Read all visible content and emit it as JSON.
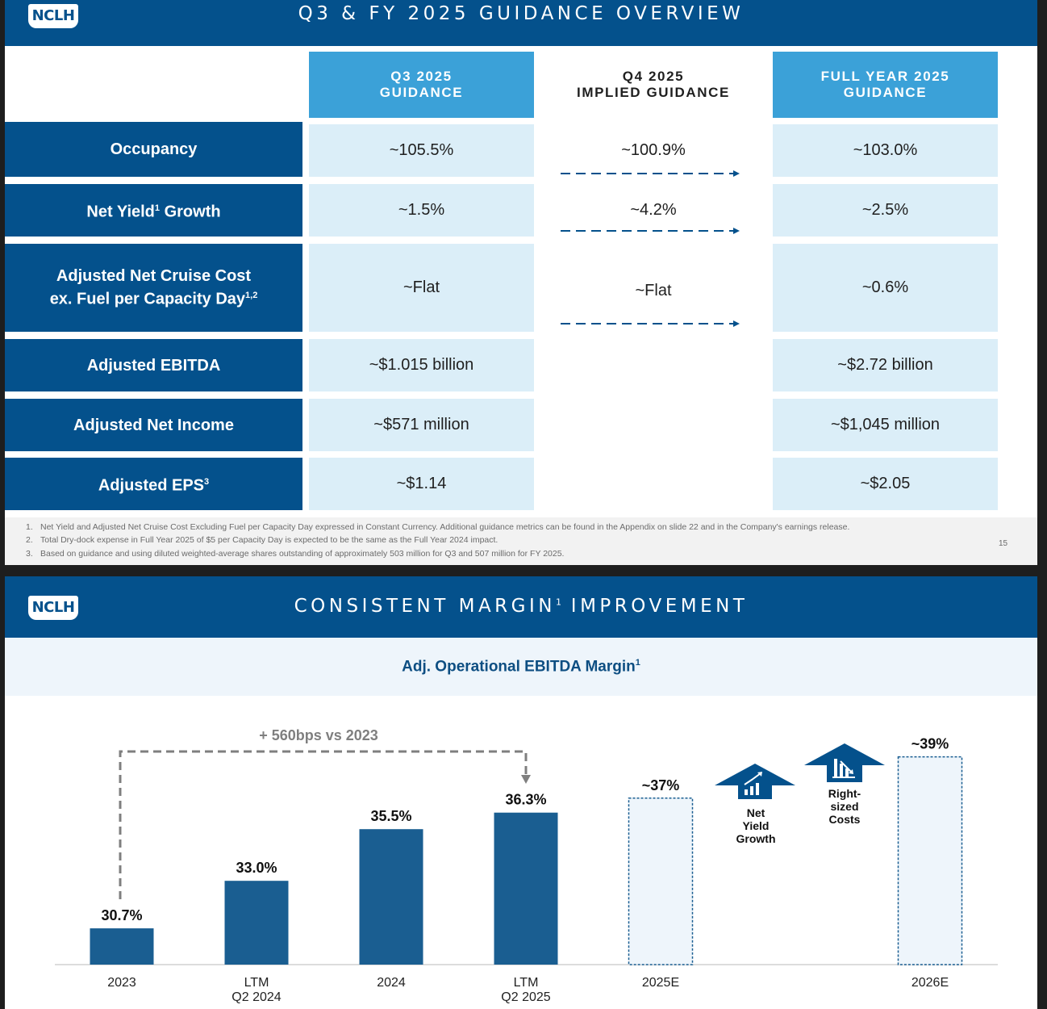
{
  "slide1": {
    "logo": "NCLH",
    "title": "Q3 & FY 2025 GUIDANCE OVERVIEW",
    "columns": {
      "q3": [
        "Q3 2025",
        "GUIDANCE"
      ],
      "q4": [
        "Q4 2025",
        "IMPLIED GUIDANCE"
      ],
      "fy": [
        "FULL YEAR 2025",
        "GUIDANCE"
      ]
    },
    "rows": [
      {
        "label": [
          "Occupancy"
        ],
        "q3": "~105.5%",
        "q4": "~100.9%",
        "fy": "~103.0%"
      },
      {
        "label": [
          "Net Yield",
          "1",
          " Growth"
        ],
        "q3": "~1.5%",
        "q4": "~4.2%",
        "fy": "~2.5%"
      },
      {
        "label": [
          "Adjusted Net Cruise Cost",
          "ex. Fuel per Capacity Day",
          "1,2"
        ],
        "q3": "~Flat",
        "q4": "~Flat",
        "fy": "~0.6%"
      },
      {
        "label": [
          "Adjusted EBITDA"
        ],
        "q3": "~$1.015 billion",
        "q4": "",
        "fy": "~$2.72 billion"
      },
      {
        "label": [
          "Adjusted Net Income"
        ],
        "q3": "~$571 million",
        "q4": "",
        "fy": "~$1,045 million"
      },
      {
        "label": [
          "Adjusted EPS",
          "3"
        ],
        "q3": "~$1.14",
        "q4": "",
        "fy": "~$2.05"
      }
    ],
    "footnotes": [
      {
        "num": "1.",
        "text": "Net Yield and Adjusted Net Cruise Cost Excluding Fuel per Capacity Day expressed in Constant Currency. Additional guidance metrics can be found in the Appendix on slide 22 and in the Company's earnings release."
      },
      {
        "num": "2.",
        "text": "Total Dry-dock expense in Full Year 2025 of $5 per Capacity Day is expected to be the same as the Full Year 2024 impact."
      },
      {
        "num": "3.",
        "text": "Based on guidance and using diluted weighted-average shares outstanding of approximately 503 million for Q3 and 507 million for FY 2025."
      }
    ],
    "page_number": "15"
  },
  "slide2": {
    "logo": "NCLH",
    "title": "CONSISTENT MARGIN",
    "title_sup": "1",
    "title_end": " IMPROVEMENT",
    "subtitle": "Adj. Operational EBITDA Margin",
    "subtitle_sup": "1",
    "annotation": "+ 560bps vs 2023",
    "drivers": [
      {
        "lines": [
          "Net",
          "Yield",
          "Growth"
        ],
        "icon": "growth-chart-icon"
      },
      {
        "lines": [
          "Right-",
          "sized",
          "Costs"
        ],
        "icon": "declining-bars-icon"
      }
    ],
    "colors": {
      "actual": "#1a5e91",
      "estimate_fill": "#eef5fb",
      "estimate_border": "#1a5e91",
      "dashed": "#7f7f7f"
    }
  },
  "chart_data": {
    "type": "bar",
    "title": "Adj. Operational EBITDA Margin",
    "unit": "%",
    "categories": [
      [
        "2023"
      ],
      [
        "LTM",
        "Q2 2024"
      ],
      [
        "2024"
      ],
      [
        "LTM",
        "Q2 2025"
      ],
      [
        "2025E"
      ],
      [
        "2026E"
      ]
    ],
    "values": [
      30.7,
      33.0,
      35.5,
      36.3,
      37,
      39
    ],
    "labels": [
      "30.7%",
      "33.0%",
      "35.5%",
      "36.3%",
      "~37%",
      "~39%"
    ],
    "estimate": [
      false,
      false,
      false,
      false,
      true,
      true
    ],
    "ylim": [
      28,
      40
    ]
  }
}
